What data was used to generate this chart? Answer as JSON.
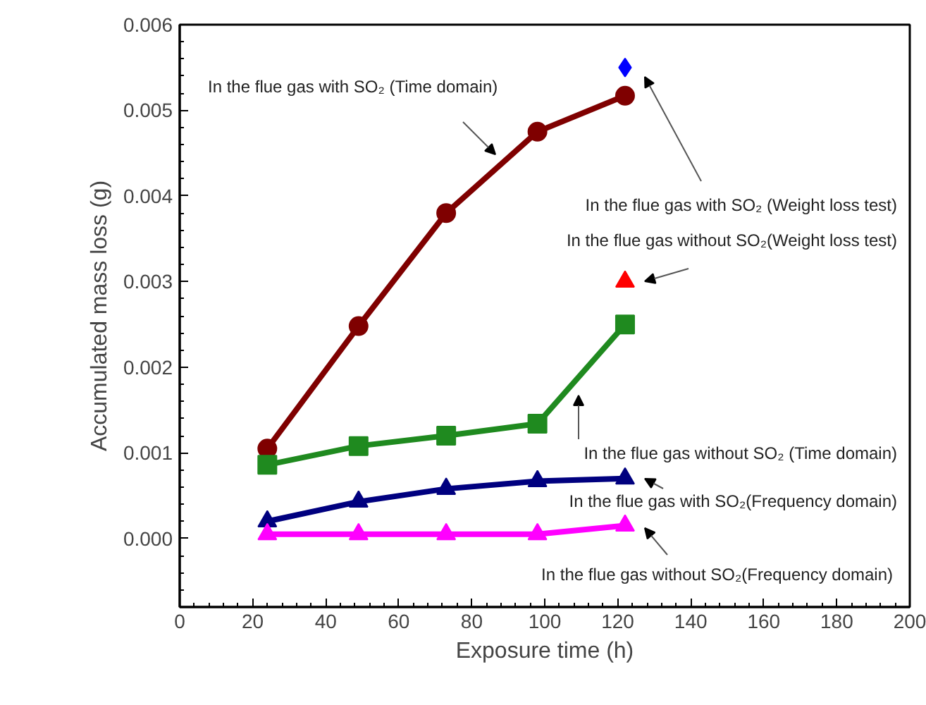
{
  "chart_data": {
    "type": "line",
    "xlabel": "Exposure time (h)",
    "ylabel": "Accumulated mass loss (g)",
    "xlim": [
      0,
      200
    ],
    "xticks": [
      0,
      20,
      40,
      60,
      80,
      100,
      120,
      140,
      160,
      180,
      200
    ],
    "ylim": [
      -0.0008,
      0.006
    ],
    "yticks": [
      {
        "value": 0,
        "label": "0.000"
      },
      {
        "value": 0.001,
        "label": "0.001"
      },
      {
        "value": 0.002,
        "label": "0.002"
      },
      {
        "value": 0.003,
        "label": "0.003"
      },
      {
        "value": 0.004,
        "label": "0.004"
      },
      {
        "value": 0.005,
        "label": "0.005"
      },
      {
        "value": 0.006,
        "label": "0.006"
      }
    ],
    "grid": false,
    "line_style": "solid",
    "x": [
      24,
      49,
      73,
      98,
      122
    ],
    "series": [
      {
        "color": "#7f0000",
        "marker": "circle",
        "values": [
          0.00105,
          0.00248,
          0.0038,
          0.00475,
          0.00517
        ]
      },
      {
        "color": "#1f8a1f",
        "marker": "square",
        "values": [
          0.00086,
          0.00108,
          0.0012,
          0.00134,
          0.0025
        ]
      },
      {
        "color": "#00007f",
        "marker": "triangle",
        "values": [
          0.0002,
          0.00043,
          0.00058,
          0.00067,
          0.0007
        ]
      },
      {
        "color": "#ff00ff",
        "marker": "triangle",
        "values": [
          5e-05,
          5e-05,
          5e-05,
          5e-05,
          0.00015
        ]
      },
      {
        "type": "scatter",
        "color": "#0000ff",
        "marker": "diamond",
        "x": [
          122
        ],
        "values": [
          0.0055
        ]
      },
      {
        "type": "scatter",
        "color": "#ff0000",
        "marker": "triangle",
        "x": [
          122
        ],
        "values": [
          0.003
        ]
      }
    ],
    "annotations": [
      "In the flue gas with SO₂ (Time domain)",
      "In the flue gas with SO₂ (Weight loss test)",
      "In the flue gas without SO₂(Weight loss test)",
      "In the flue gas without SO₂ (Time domain)",
      "In the flue gas with SO₂(Frequency domain)",
      "In the flue gas without SO₂(Frequency domain)"
    ]
  }
}
